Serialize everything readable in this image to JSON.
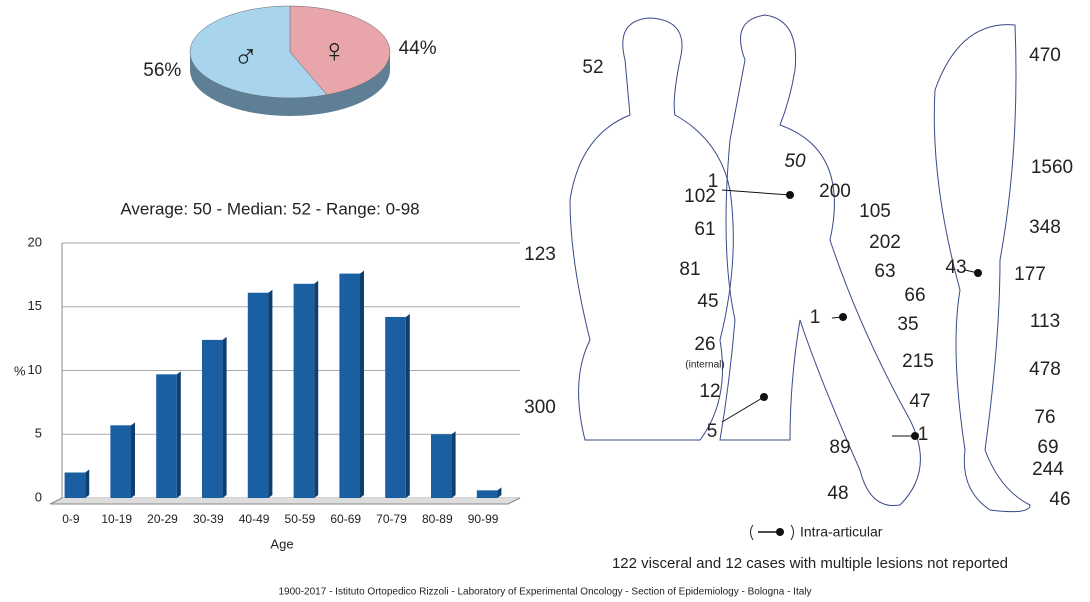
{
  "chart_data": [
    {
      "type": "pie",
      "categories": [
        "♂",
        "♀"
      ],
      "values": [
        56,
        44
      ],
      "value_labels": [
        "56%",
        "44%"
      ],
      "colors": [
        "#a9d4ee",
        "#e8a6ab"
      ]
    },
    {
      "type": "bar",
      "title": "Average: 50  -  Median: 52  -  Range: 0-98",
      "x_label": "Age",
      "y_label": "%",
      "categories": [
        "0-9",
        "10-19",
        "20-29",
        "30-39",
        "40-49",
        "50-59",
        "60-69",
        "70-79",
        "80-89",
        "90-99"
      ],
      "values": [
        2.0,
        5.7,
        9.7,
        12.4,
        16.1,
        16.8,
        17.6,
        14.2,
        5.0,
        0.6
      ],
      "color": "#1b5fa3",
      "ylim": [
        0,
        20
      ],
      "yticks": [
        0,
        5,
        10,
        15,
        20
      ],
      "grid": true
    }
  ],
  "diagram": {
    "labels": [
      52,
      123,
      81,
      300,
      1,
      102,
      61,
      45,
      26,
      12,
      5,
      50,
      200,
      105,
      202,
      63,
      66,
      1,
      35,
      215,
      47,
      89,
      1,
      48,
      470,
      1560,
      348,
      43,
      177,
      113,
      478,
      76,
      69,
      244,
      46
    ],
    "internal": "(internal)",
    "legend": "Intra-articular",
    "note": "122 visceral and 12 cases with multiple lesions not reported"
  },
  "footer": "1900-2017  -  Istituto Ortopedico Rizzoli  -  Laboratory of Experimental Oncology  -  Section of Epidemiology  -  Bologna  -  Italy"
}
